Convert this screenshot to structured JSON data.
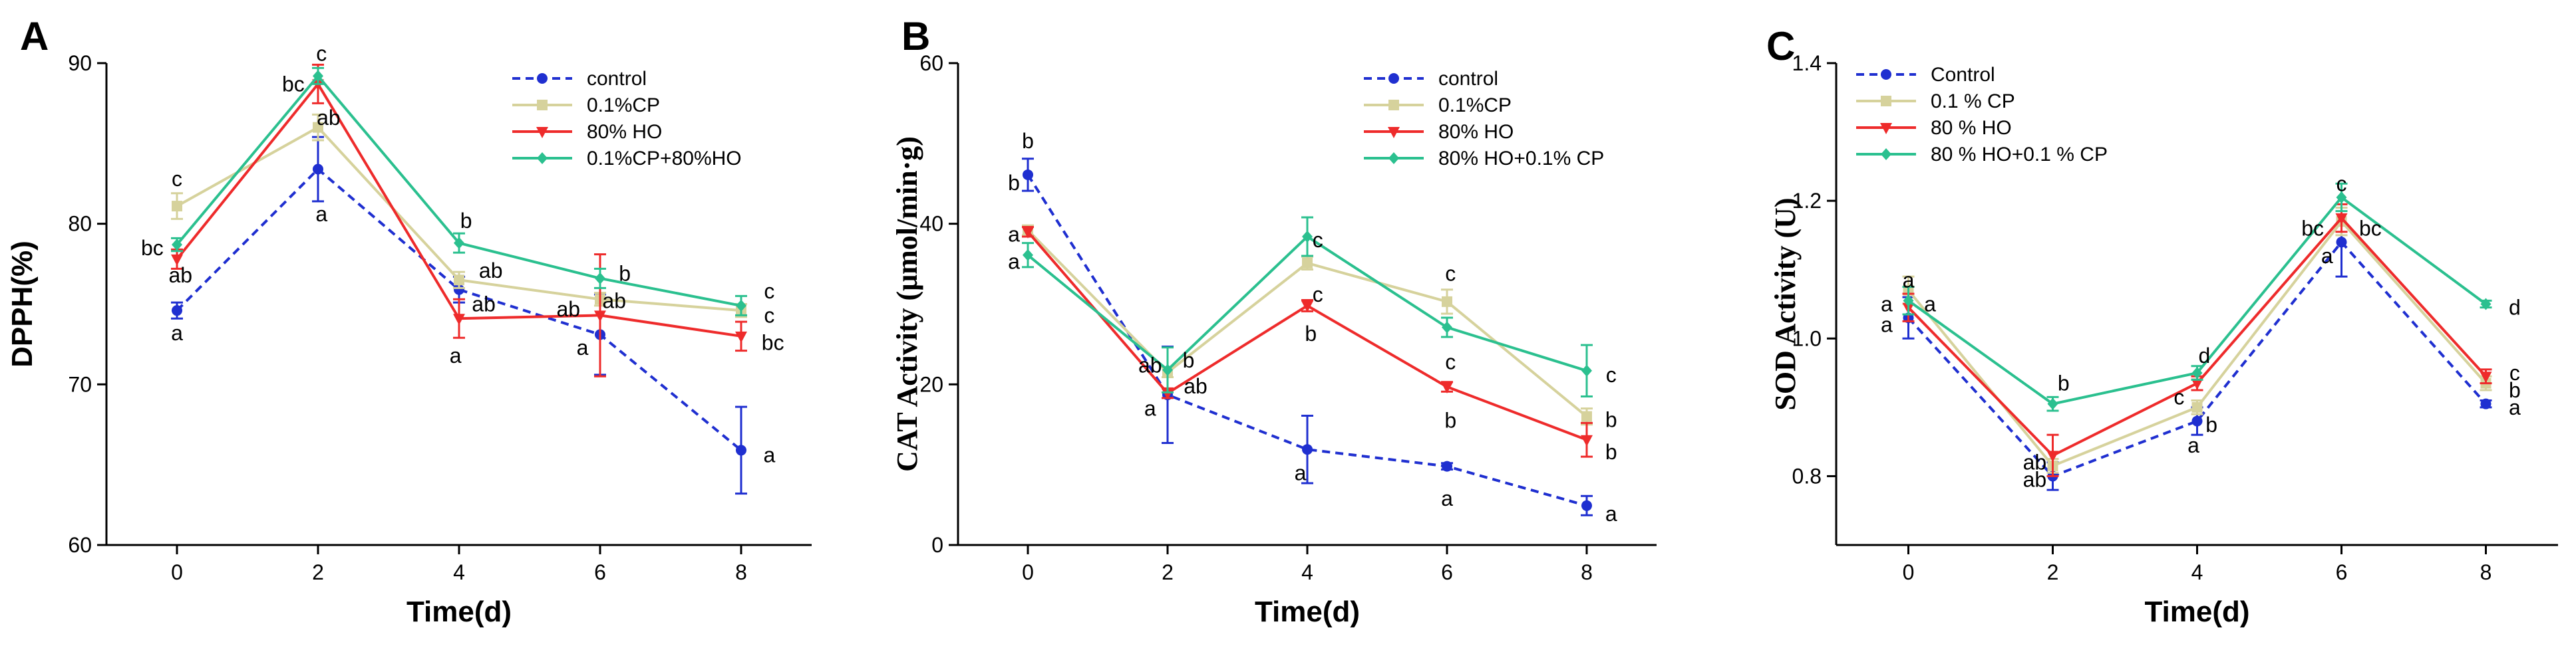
{
  "colors": {
    "control": "#1f2fd0",
    "cp": "#d6d29c",
    "ho": "#ee2b2b",
    "mix": "#2bc08f",
    "axis": "#000000"
  },
  "chart_data": [
    {
      "type": "line",
      "panel_label": "A",
      "title": "",
      "xlabel": "Time(d)",
      "ylabel": "DPPH(%)",
      "ylim": [
        60,
        90
      ],
      "yticks": [
        60,
        70,
        80,
        90
      ],
      "xticks": [
        0,
        2,
        4,
        6,
        8
      ],
      "x": [
        0,
        2,
        4,
        6,
        8
      ],
      "legend_position": "top-right",
      "series": [
        {
          "name": "control",
          "key": "control",
          "dashed": true,
          "marker": "circle",
          "values": [
            74.6,
            83.4,
            75.9,
            73.1,
            65.9
          ],
          "errors": [
            0.5,
            2.0,
            0.8,
            2.5,
            2.7
          ]
        },
        {
          "name": "0.1%CP",
          "key": "cp",
          "dashed": false,
          "marker": "square",
          "values": [
            81.1,
            86.0,
            76.5,
            75.3,
            74.6
          ],
          "errors": [
            0.8,
            0.8,
            0.5,
            0.4,
            0.4
          ]
        },
        {
          "name": "80% HO",
          "key": "ho",
          "dashed": false,
          "marker": "triangle-down",
          "values": [
            77.8,
            88.7,
            74.1,
            74.3,
            73.0
          ],
          "errors": [
            0.6,
            1.2,
            1.2,
            3.8,
            0.9
          ]
        },
        {
          "name": "0.1%CP+80%HO",
          "key": "mix",
          "dashed": false,
          "marker": "diamond",
          "values": [
            78.7,
            89.2,
            78.8,
            76.6,
            74.9
          ],
          "errors": [
            0.4,
            0.5,
            0.6,
            0.6,
            0.6
          ]
        }
      ],
      "annotations": [
        {
          "text": "c",
          "x": 0,
          "y": 82.8,
          "align": "center"
        },
        {
          "text": "bc",
          "x": -0.35,
          "y": 78.5,
          "align": "center"
        },
        {
          "text": "ab",
          "x": 0.05,
          "y": 76.8,
          "align": "center"
        },
        {
          "text": "a",
          "x": 0,
          "y": 73.2,
          "align": "center"
        },
        {
          "text": "c",
          "x": 2.05,
          "y": 90.6,
          "align": "center"
        },
        {
          "text": "bc",
          "x": 1.65,
          "y": 88.7,
          "align": "center"
        },
        {
          "text": "ab",
          "x": 2.15,
          "y": 86.6,
          "align": "center"
        },
        {
          "text": "a",
          "x": 2.05,
          "y": 80.6,
          "align": "center"
        },
        {
          "text": "b",
          "x": 4.1,
          "y": 80.2,
          "align": "center"
        },
        {
          "text": "ab",
          "x": 4.45,
          "y": 77.1,
          "align": "center"
        },
        {
          "text": "ab",
          "x": 4.35,
          "y": 75.0,
          "align": "center"
        },
        {
          "text": "a",
          "x": 3.95,
          "y": 71.8,
          "align": "center"
        },
        {
          "text": "b",
          "x": 6.35,
          "y": 76.9,
          "align": "center"
        },
        {
          "text": "ab",
          "x": 5.55,
          "y": 74.7,
          "align": "center"
        },
        {
          "text": "ab",
          "x": 6.2,
          "y": 75.2,
          "align": "center"
        },
        {
          "text": "a",
          "x": 5.75,
          "y": 72.3,
          "align": "center"
        },
        {
          "text": "c",
          "x": 8.4,
          "y": 75.8,
          "align": "center"
        },
        {
          "text": "c",
          "x": 8.4,
          "y": 74.3,
          "align": "center"
        },
        {
          "text": "bc",
          "x": 8.45,
          "y": 72.6,
          "align": "center"
        },
        {
          "text": "a",
          "x": 8.4,
          "y": 65.6,
          "align": "center"
        }
      ]
    },
    {
      "type": "line",
      "panel_label": "B",
      "title": "",
      "xlabel": "Time(d)",
      "ylabel": "CAT Activity (μmol/min·g)",
      "ylim": [
        0,
        60
      ],
      "yticks": [
        0,
        20,
        40,
        60
      ],
      "xticks": [
        0,
        2,
        4,
        6,
        8
      ],
      "x": [
        0,
        2,
        4,
        6,
        8
      ],
      "legend_position": "top-right",
      "series": [
        {
          "name": "control",
          "key": "control",
          "dashed": true,
          "marker": "circle",
          "values": [
            46.1,
            18.7,
            11.9,
            9.8,
            4.9
          ],
          "errors": [
            2.0,
            6.0,
            4.2,
            0.4,
            1.2
          ]
        },
        {
          "name": "0.1%CP",
          "key": "cp",
          "dashed": false,
          "marker": "square",
          "values": [
            39.2,
            21.5,
            35.1,
            30.3,
            16.0
          ],
          "errors": [
            0.6,
            0.6,
            0.8,
            1.5,
            1.0
          ]
        },
        {
          "name": "80% HO",
          "key": "ho",
          "dashed": false,
          "marker": "triangle-down",
          "values": [
            39.0,
            18.9,
            29.8,
            19.7,
            13.1
          ],
          "errors": [
            0.6,
            0.6,
            0.7,
            0.6,
            2.1
          ]
        },
        {
          "name": "80% HO+0.1% CP",
          "key": "mix",
          "dashed": false,
          "marker": "diamond",
          "values": [
            36.1,
            21.8,
            38.4,
            27.1,
            21.7
          ],
          "errors": [
            1.5,
            2.8,
            2.4,
            1.2,
            3.2
          ]
        }
      ],
      "annotations": [
        {
          "text": "b",
          "x": 0,
          "y": 50.3,
          "align": "center"
        },
        {
          "text": "b",
          "x": -0.2,
          "y": 45.1,
          "align": "center"
        },
        {
          "text": "a",
          "x": -0.2,
          "y": 38.7,
          "align": "center"
        },
        {
          "text": "a",
          "x": -0.2,
          "y": 35.3,
          "align": "center"
        },
        {
          "text": "ab",
          "x": 1.75,
          "y": 22.4,
          "align": "center"
        },
        {
          "text": "b",
          "x": 2.3,
          "y": 23.0,
          "align": "center"
        },
        {
          "text": "ab",
          "x": 2.4,
          "y": 19.8,
          "align": "center"
        },
        {
          "text": "a",
          "x": 1.75,
          "y": 17.0,
          "align": "center"
        },
        {
          "text": "c",
          "x": 4.15,
          "y": 38.0,
          "align": "center"
        },
        {
          "text": "c",
          "x": 4.15,
          "y": 31.2,
          "align": "center"
        },
        {
          "text": "b",
          "x": 4.05,
          "y": 26.3,
          "align": "center"
        },
        {
          "text": "a",
          "x": 3.9,
          "y": 9.0,
          "align": "center"
        },
        {
          "text": "c",
          "x": 6.05,
          "y": 33.8,
          "align": "center"
        },
        {
          "text": "c",
          "x": 6.05,
          "y": 22.8,
          "align": "center"
        },
        {
          "text": "b",
          "x": 6.05,
          "y": 15.5,
          "align": "center"
        },
        {
          "text": "a",
          "x": 6.0,
          "y": 5.8,
          "align": "center"
        },
        {
          "text": "c",
          "x": 8.35,
          "y": 21.2,
          "align": "center"
        },
        {
          "text": "b",
          "x": 8.35,
          "y": 15.6,
          "align": "center"
        },
        {
          "text": "b",
          "x": 8.35,
          "y": 11.6,
          "align": "center"
        },
        {
          "text": "a",
          "x": 8.35,
          "y": 3.9,
          "align": "center"
        }
      ]
    },
    {
      "type": "line",
      "panel_label": "C",
      "title": "",
      "xlabel": "Time(d)",
      "ylabel": "SOD Activity (U)",
      "ylim": [
        0.7,
        1.4
      ],
      "yticks": [
        0.8,
        1.0,
        1.2,
        1.4
      ],
      "xticks": [
        0,
        2,
        4,
        6,
        8
      ],
      "x": [
        0,
        2,
        4,
        6,
        8
      ],
      "legend_position": "top-left",
      "series": [
        {
          "name": "Control",
          "key": "control",
          "dashed": true,
          "marker": "circle",
          "values": [
            1.03,
            0.8,
            0.88,
            1.14,
            0.905
          ],
          "errors": [
            0.03,
            0.02,
            0.02,
            0.05,
            0.005
          ]
        },
        {
          "name": "0.1 % CP",
          "key": "cp",
          "dashed": false,
          "marker": "square",
          "values": [
            1.07,
            0.815,
            0.9,
            1.17,
            0.935
          ],
          "errors": [
            0.02,
            0.01,
            0.01,
            0.02,
            0.01
          ]
        },
        {
          "name": "80 % HO",
          "key": "ho",
          "dashed": false,
          "marker": "triangle-down",
          "values": [
            1.045,
            0.83,
            0.935,
            1.175,
            0.945
          ],
          "errors": [
            0.02,
            0.03,
            0.01,
            0.02,
            0.01
          ]
        },
        {
          "name": "80 % HO+0.1 % CP",
          "key": "mix",
          "dashed": false,
          "marker": "diamond",
          "values": [
            1.055,
            0.905,
            0.95,
            1.205,
            1.05
          ],
          "errors": [
            0.02,
            0.01,
            0.01,
            0.02,
            0.005
          ]
        }
      ],
      "annotations": [
        {
          "text": "a",
          "x": 0,
          "y": 1.085,
          "align": "center"
        },
        {
          "text": "a",
          "x": -0.3,
          "y": 1.05,
          "align": "center"
        },
        {
          "text": "a",
          "x": 0.3,
          "y": 1.05,
          "align": "center"
        },
        {
          "text": "a",
          "x": -0.3,
          "y": 1.02,
          "align": "center"
        },
        {
          "text": "b",
          "x": 2.15,
          "y": 0.935,
          "align": "center"
        },
        {
          "text": "ab",
          "x": 1.75,
          "y": 0.82,
          "align": "center"
        },
        {
          "text": "ab",
          "x": 1.75,
          "y": 0.795,
          "align": "center"
        },
        {
          "text": "d",
          "x": 4.1,
          "y": 0.975,
          "align": "center"
        },
        {
          "text": "c",
          "x": 3.75,
          "y": 0.915,
          "align": "center"
        },
        {
          "text": "b",
          "x": 4.2,
          "y": 0.875,
          "align": "center"
        },
        {
          "text": "a",
          "x": 3.95,
          "y": 0.845,
          "align": "center"
        },
        {
          "text": "c",
          "x": 6.0,
          "y": 1.225,
          "align": "center"
        },
        {
          "text": "bc",
          "x": 5.6,
          "y": 1.16,
          "align": "center"
        },
        {
          "text": "bc",
          "x": 6.4,
          "y": 1.16,
          "align": "center"
        },
        {
          "text": "a",
          "x": 5.8,
          "y": 1.12,
          "align": "center"
        },
        {
          "text": "d",
          "x": 8.4,
          "y": 1.045,
          "align": "center"
        },
        {
          "text": "c",
          "x": 8.4,
          "y": 0.95,
          "align": "center"
        },
        {
          "text": "b",
          "x": 8.4,
          "y": 0.925,
          "align": "center"
        },
        {
          "text": "a",
          "x": 8.4,
          "y": 0.9,
          "align": "center"
        }
      ]
    }
  ]
}
